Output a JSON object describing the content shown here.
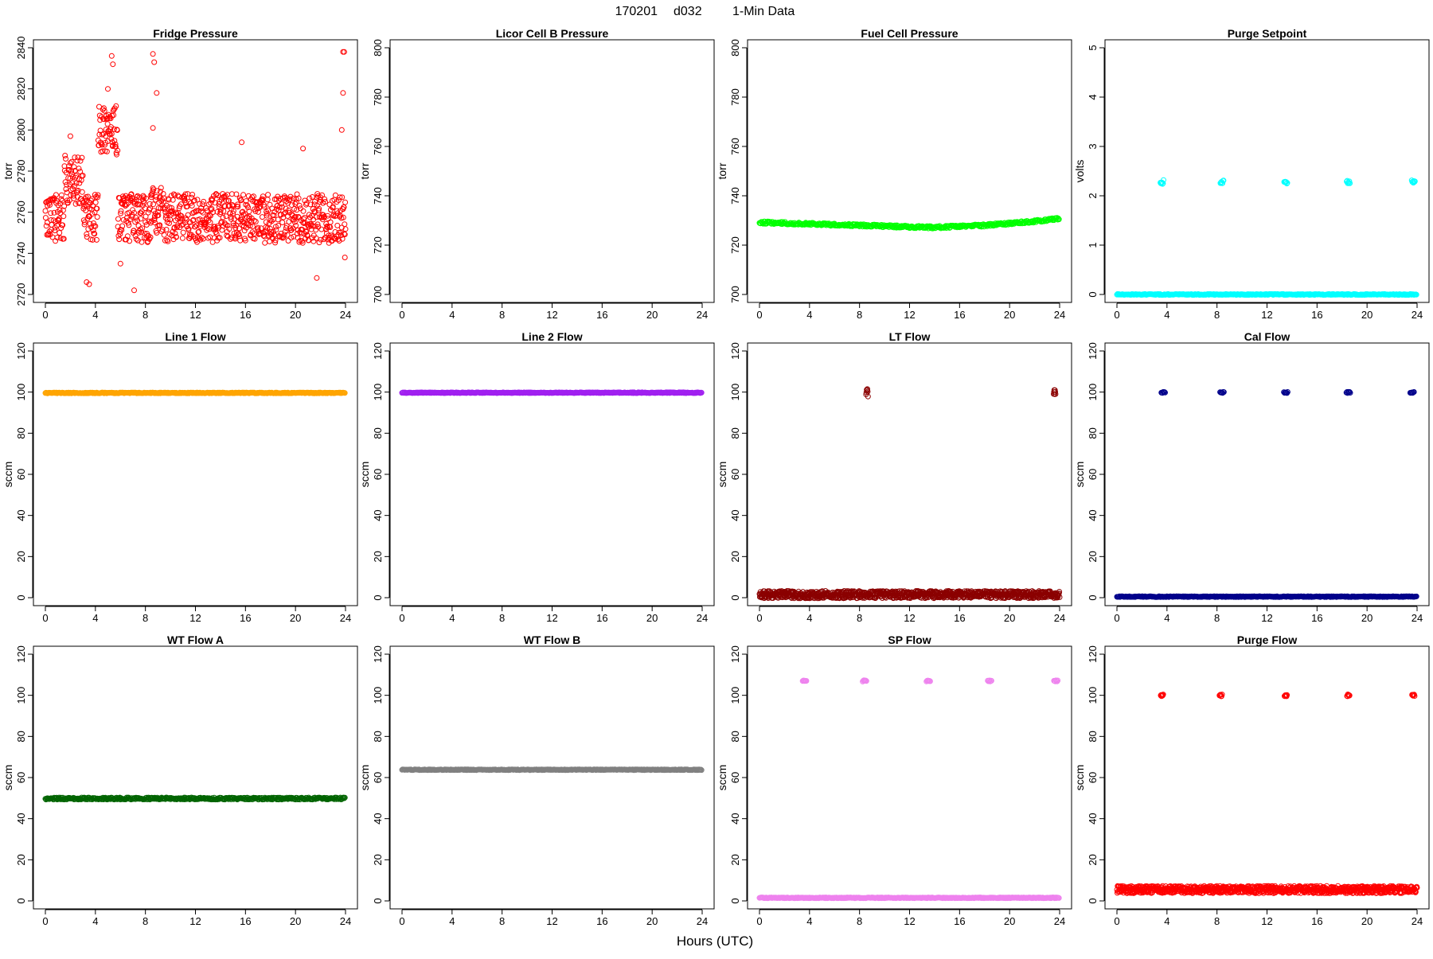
{
  "header": {
    "date": "170201",
    "station": "d032",
    "resolution": "1-Min Data"
  },
  "xlabel": "Hours (UTC)",
  "chart_data": [
    {
      "type": "scatter",
      "title": "Fridge Pressure",
      "ylabel": "torr",
      "xlim": [
        0,
        24
      ],
      "ylim": [
        2720,
        2840
      ],
      "xticks": [
        0,
        4,
        8,
        12,
        16,
        20,
        24
      ],
      "yticks": [
        2720,
        2740,
        2760,
        2780,
        2800,
        2820,
        2840
      ],
      "color": "#ff0000",
      "hollow": true,
      "series": [
        {
          "pattern": "noise",
          "base": 2757,
          "spread": 12,
          "seed": 11,
          "segments": [
            [
              1.5,
              3.0,
              2776
            ],
            [
              4.2,
              5.8,
              2800
            ],
            [
              8.5,
              9.3,
              2762
            ]
          ],
          "spikes": [
            [
              5.3,
              2836
            ],
            [
              5.4,
              2832
            ],
            [
              5.0,
              2820
            ],
            [
              8.6,
              2837
            ],
            [
              8.7,
              2833
            ],
            [
              8.9,
              2818
            ],
            [
              8.6,
              2801
            ],
            [
              2.0,
              2797
            ],
            [
              3.3,
              2726
            ],
            [
              3.5,
              2725
            ],
            [
              7.1,
              2722
            ],
            [
              23.8,
              2838
            ],
            [
              23.9,
              2838
            ],
            [
              23.8,
              2818
            ],
            [
              23.7,
              2800
            ],
            [
              23.95,
              2738
            ],
            [
              6.0,
              2735
            ],
            [
              15.7,
              2794
            ],
            [
              20.6,
              2791
            ],
            [
              21.7,
              2728
            ]
          ]
        }
      ]
    },
    {
      "type": "scatter",
      "title": "Licor Cell B Pressure",
      "ylabel": "torr",
      "xlim": [
        0,
        24
      ],
      "ylim": [
        700,
        800
      ],
      "xticks": [
        0,
        4,
        8,
        12,
        16,
        20,
        24
      ],
      "yticks": [
        700,
        720,
        740,
        760,
        780,
        800
      ],
      "color": "#000000",
      "hollow": true,
      "series": []
    },
    {
      "type": "scatter",
      "title": "Fuel Cell Pressure",
      "ylabel": "torr",
      "xlim": [
        0,
        24
      ],
      "ylim": [
        700,
        800
      ],
      "xticks": [
        0,
        4,
        8,
        12,
        16,
        20,
        24
      ],
      "yticks": [
        700,
        720,
        740,
        760,
        780,
        800
      ],
      "color": "#00ff00",
      "hollow": true,
      "series": [
        {
          "pattern": "curve",
          "points": [
            [
              0,
              729.2
            ],
            [
              4,
              728.6
            ],
            [
              8,
              728.0
            ],
            [
              12,
              727.4
            ],
            [
              14,
              727.2
            ],
            [
              18,
              728.0
            ],
            [
              22,
              729.6
            ],
            [
              24,
              730.8
            ]
          ],
          "spread": 0.5
        }
      ]
    },
    {
      "type": "scatter",
      "title": "Purge Setpoint",
      "ylabel": "volts",
      "xlim": [
        0,
        24
      ],
      "ylim": [
        0,
        5
      ],
      "xticks": [
        0,
        4,
        8,
        12,
        16,
        20,
        24
      ],
      "yticks": [
        0,
        1,
        2,
        3,
        4,
        5
      ],
      "color": "#00ffff",
      "hollow": true,
      "series": [
        {
          "pattern": "flat",
          "value": 0.0,
          "spread": 0.01
        },
        {
          "pattern": "clusters",
          "centers": [
            3.6,
            8.4,
            13.5,
            18.5,
            23.7
          ],
          "value": 2.28,
          "spread": 0.04,
          "width": 0.25
        }
      ]
    },
    {
      "type": "scatter",
      "title": "Line 1 Flow",
      "ylabel": "sccm",
      "xlim": [
        0,
        24
      ],
      "ylim": [
        0,
        120
      ],
      "xticks": [
        0,
        4,
        8,
        12,
        16,
        20,
        24
      ],
      "yticks": [
        0,
        20,
        40,
        60,
        80,
        100,
        120
      ],
      "color": "#ffa500",
      "hollow": true,
      "series": [
        {
          "pattern": "flat",
          "value": 99.6,
          "spread": 0.2
        }
      ]
    },
    {
      "type": "scatter",
      "title": "Line 2 Flow",
      "ylabel": "sccm",
      "xlim": [
        0,
        24
      ],
      "ylim": [
        0,
        120
      ],
      "xticks": [
        0,
        4,
        8,
        12,
        16,
        20,
        24
      ],
      "yticks": [
        0,
        20,
        40,
        60,
        80,
        100,
        120
      ],
      "color": "#a020f0",
      "hollow": true,
      "series": [
        {
          "pattern": "flat",
          "value": 99.7,
          "spread": 0.2
        }
      ]
    },
    {
      "type": "scatter",
      "title": "LT Flow",
      "ylabel": "sccm",
      "xlim": [
        0,
        24
      ],
      "ylim": [
        0,
        120
      ],
      "xticks": [
        0,
        4,
        8,
        12,
        16,
        20,
        24
      ],
      "yticks": [
        0,
        20,
        40,
        60,
        80,
        100,
        120
      ],
      "color": "#8b0000",
      "hollow": true,
      "series": [
        {
          "pattern": "noise",
          "base": 1.5,
          "spread": 1.8,
          "seed": 7
        },
        {
          "pattern": "clusters",
          "centers": [
            8.6,
            23.6
          ],
          "value": 99.5,
          "spread": 2.0,
          "width": 0.15
        }
      ]
    },
    {
      "type": "scatter",
      "title": "Cal Flow",
      "ylabel": "sccm",
      "xlim": [
        0,
        24
      ],
      "ylim": [
        0,
        120
      ],
      "xticks": [
        0,
        4,
        8,
        12,
        16,
        20,
        24
      ],
      "yticks": [
        0,
        20,
        40,
        60,
        80,
        100,
        120
      ],
      "color": "#00008b",
      "hollow": true,
      "series": [
        {
          "pattern": "flat",
          "value": 0.5,
          "spread": 0.2
        },
        {
          "pattern": "clusters",
          "centers": [
            3.7,
            8.4,
            13.5,
            18.5,
            23.6
          ],
          "value": 99.8,
          "spread": 0.3,
          "width": 0.3
        }
      ]
    },
    {
      "type": "scatter",
      "title": "WT Flow A",
      "ylabel": "sccm",
      "xlim": [
        0,
        24
      ],
      "ylim": [
        0,
        120
      ],
      "xticks": [
        0,
        4,
        8,
        12,
        16,
        20,
        24
      ],
      "yticks": [
        0,
        20,
        40,
        60,
        80,
        100,
        120
      ],
      "color": "#006400",
      "hollow": true,
      "series": [
        {
          "pattern": "flat",
          "value": 49.8,
          "spread": 0.5
        }
      ]
    },
    {
      "type": "scatter",
      "title": "WT Flow B",
      "ylabel": "sccm",
      "xlim": [
        0,
        24
      ],
      "ylim": [
        0,
        120
      ],
      "xticks": [
        0,
        4,
        8,
        12,
        16,
        20,
        24
      ],
      "yticks": [
        0,
        20,
        40,
        60,
        80,
        100,
        120
      ],
      "color": "#808080",
      "hollow": true,
      "series": [
        {
          "pattern": "flat",
          "value": 63.8,
          "spread": 0.2
        }
      ]
    },
    {
      "type": "scatter",
      "title": "SP Flow",
      "ylabel": "sccm",
      "xlim": [
        0,
        24
      ],
      "ylim": [
        0,
        120
      ],
      "xticks": [
        0,
        4,
        8,
        12,
        16,
        20,
        24
      ],
      "yticks": [
        0,
        20,
        40,
        60,
        80,
        100,
        120
      ],
      "color": "#ee82ee",
      "hollow": true,
      "series": [
        {
          "pattern": "flat",
          "value": 1.5,
          "spread": 0.2
        },
        {
          "pattern": "clusters",
          "centers": [
            3.6,
            8.4,
            13.5,
            18.4,
            23.7
          ],
          "value": 107,
          "spread": 0.3,
          "width": 0.3
        }
      ]
    },
    {
      "type": "scatter",
      "title": "Purge Flow",
      "ylabel": "sccm",
      "xlim": [
        0,
        24
      ],
      "ylim": [
        0,
        120
      ],
      "xticks": [
        0,
        4,
        8,
        12,
        16,
        20,
        24
      ],
      "yticks": [
        0,
        20,
        40,
        60,
        80,
        100,
        120
      ],
      "color": "#ff0000",
      "hollow": true,
      "series": [
        {
          "pattern": "noise",
          "base": 5.5,
          "spread": 1.8,
          "seed": 3
        },
        {
          "pattern": "clusters",
          "centers": [
            3.6,
            8.3,
            13.5,
            18.5,
            23.7
          ],
          "value": 100,
          "spread": 0.5,
          "width": 0.2
        }
      ]
    }
  ]
}
